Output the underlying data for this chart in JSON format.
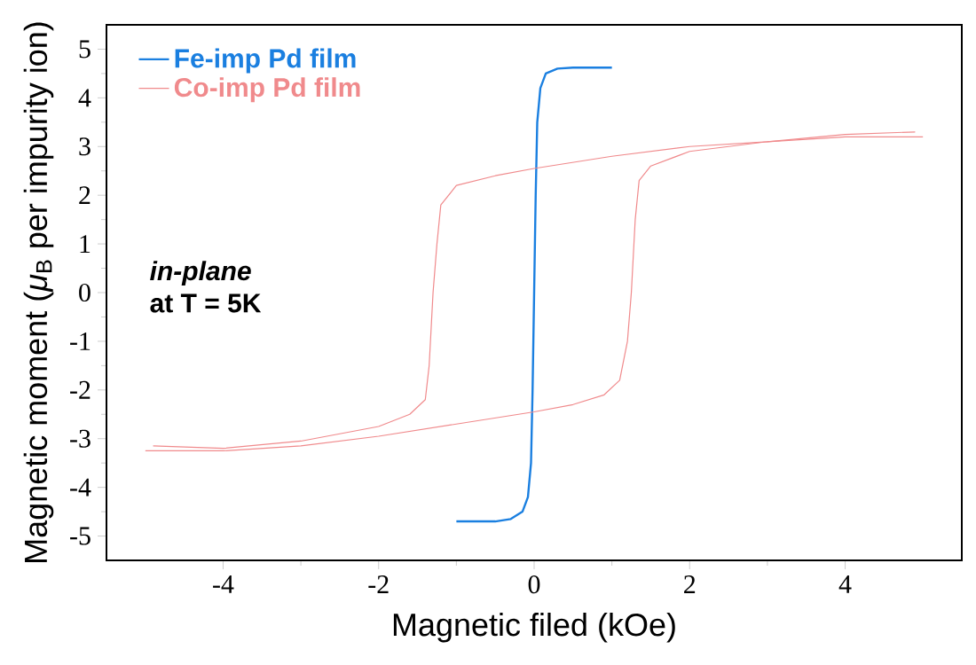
{
  "chart_data": {
    "type": "line",
    "xlabel": "Magnetic filed (kOe)",
    "ylabel": "Magnetic moment (*μ*$_{B}$ per impurity ion)",
    "xlim": [
      -5.5,
      5.5
    ],
    "ylim": [
      -5.5,
      5.5
    ],
    "xticks": [
      -4,
      -2,
      0,
      2,
      4
    ],
    "yticks": [
      -5,
      -4,
      -3,
      -2,
      -1,
      0,
      1,
      2,
      3,
      4,
      5
    ],
    "legend": "top left",
    "annotations": [
      "*in-plane*",
      "at T = 5K"
    ],
    "series": [
      {
        "name": "Fe-imp Pd film",
        "color": "#1a7fe0",
        "x": [
          -1,
          -0.5,
          -0.3,
          -0.15,
          -0.08,
          -0.04,
          -0.02,
          0,
          0.02,
          0.04,
          0.08,
          0.15,
          0.3,
          0.5,
          1
        ],
        "values": [
          -4.7,
          -4.7,
          -4.65,
          -4.5,
          -4.2,
          -3.5,
          -2.0,
          0,
          2.0,
          3.5,
          4.2,
          4.5,
          4.6,
          4.62,
          4.62
        ]
      },
      {
        "name": "Co-imp Pd film",
        "color": "#f08a8c",
        "x": [
          -5,
          -4,
          -3,
          -2,
          -1,
          0,
          0.5,
          0.9,
          1.1,
          1.2,
          1.25,
          1.3,
          1.35,
          1.5,
          2,
          3,
          4,
          5
        ],
        "values": [
          -3.25,
          -3.25,
          -3.15,
          -2.95,
          -2.7,
          -2.45,
          -2.3,
          -2.1,
          -1.8,
          -1.0,
          0,
          1.5,
          2.3,
          2.6,
          2.9,
          3.1,
          3.2,
          3.2
        ]
      },
      {
        "color": "#f08a8c",
        "x": [
          4.9,
          4,
          3,
          2,
          1,
          0,
          -0.5,
          -1,
          -1.2,
          -1.25,
          -1.3,
          -1.35,
          -1.4,
          -1.6,
          -2,
          -3,
          -4,
          -4.9
        ],
        "values": [
          3.3,
          3.25,
          3.1,
          3.0,
          2.8,
          2.55,
          2.4,
          2.2,
          1.8,
          1.0,
          0,
          -1.5,
          -2.2,
          -2.5,
          -2.75,
          -3.05,
          -3.2,
          -3.15
        ]
      }
    ]
  }
}
